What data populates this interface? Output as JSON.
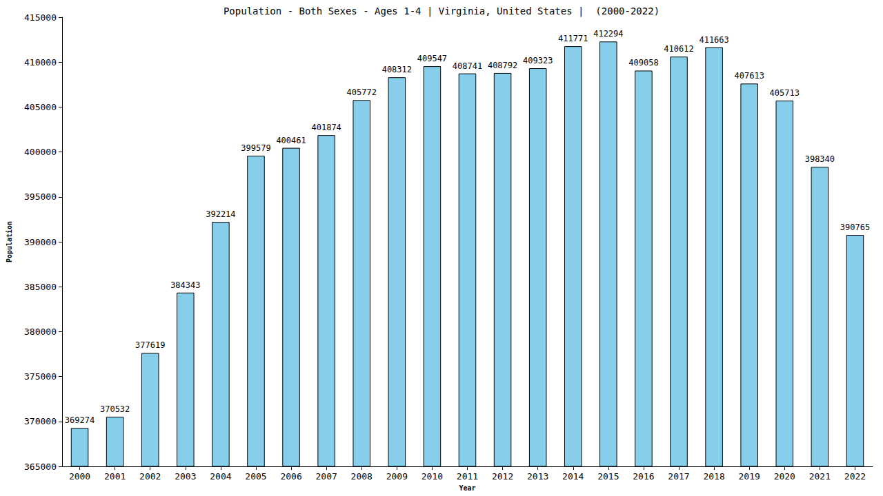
{
  "chart_data": {
    "type": "bar",
    "title": "Population - Both Sexes - Ages 1-4 | Virginia, United States |  (2000-2022)",
    "x_label": "Year",
    "y_label": "Population",
    "categories": [
      "2000",
      "2001",
      "2002",
      "2003",
      "2004",
      "2005",
      "2006",
      "2007",
      "2008",
      "2009",
      "2010",
      "2011",
      "2012",
      "2013",
      "2014",
      "2015",
      "2016",
      "2017",
      "2018",
      "2019",
      "2020",
      "2021",
      "2022"
    ],
    "values": [
      369274,
      370532,
      377619,
      384343,
      392214,
      399579,
      400461,
      401874,
      405772,
      408312,
      409547,
      408741,
      408792,
      409323,
      411771,
      412294,
      409058,
      410612,
      411663,
      407613,
      405713,
      398340,
      390765
    ],
    "color": "#87ceeb",
    "ylim": [
      365000,
      415000
    ],
    "yticks": [
      365000,
      370000,
      375000,
      380000,
      385000,
      390000,
      395000,
      400000,
      405000,
      410000,
      415000
    ],
    "grid": false,
    "data_labels": true
  }
}
